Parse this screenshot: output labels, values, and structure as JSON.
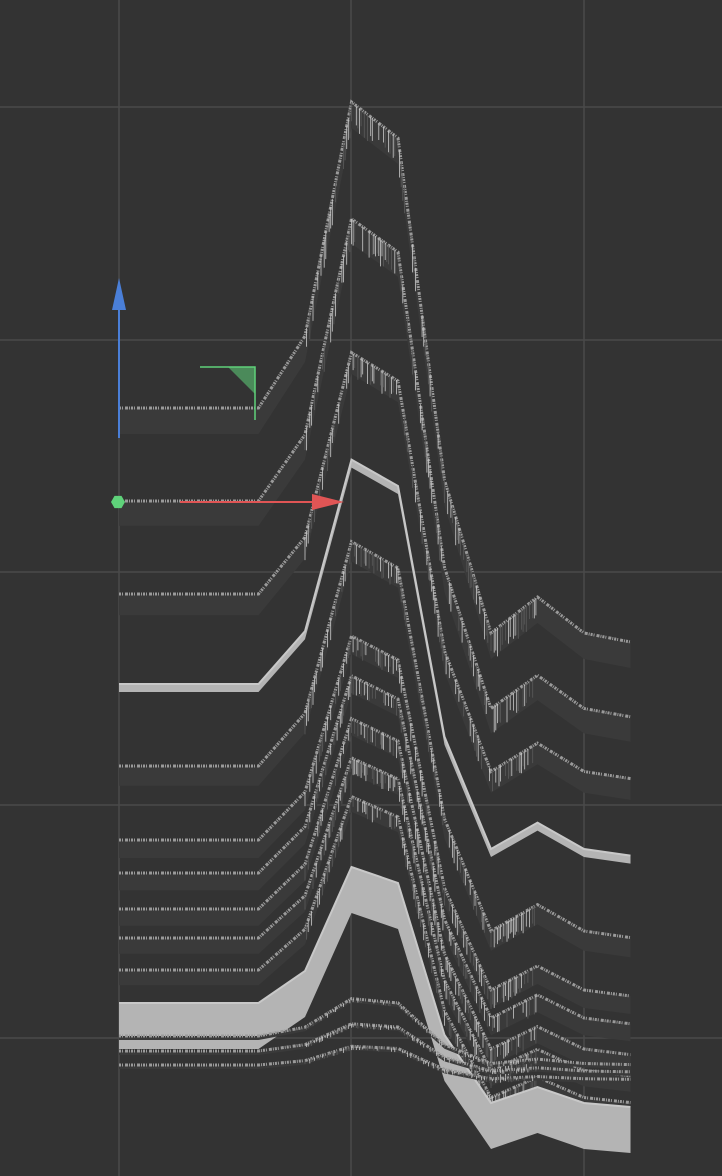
{
  "viewport": {
    "background": "#333333",
    "grid": {
      "visible": true,
      "color": "#4a4a4a"
    }
  },
  "profile": {
    "x": [
      0,
      3,
      4,
      5,
      6,
      7,
      8,
      9,
      10,
      11
    ],
    "shape": [
      0,
      0,
      0.08,
      0.34,
      0.3,
      -0.08,
      -0.25,
      -0.21,
      -0.25,
      -0.26
    ]
  },
  "layers": [
    {
      "index": 0,
      "amplitude": 900,
      "baseline": 408,
      "thickness": 3,
      "style": "noisy"
    },
    {
      "index": 1,
      "amplitude": 830,
      "baseline": 501,
      "thickness": 3,
      "style": "noisy"
    },
    {
      "index": 2,
      "amplitude": 710,
      "baseline": 594,
      "thickness": 3,
      "style": "noisy"
    },
    {
      "index": 3,
      "amplitude": 660,
      "baseline": 684,
      "thickness": 8,
      "style": "solid"
    },
    {
      "index": 4,
      "amplitude": 660,
      "baseline": 766,
      "thickness": 3,
      "style": "noisy"
    },
    {
      "index": 5,
      "amplitude": 600,
      "baseline": 840,
      "thickness": 3,
      "style": "noisy"
    },
    {
      "index": 6,
      "amplitude": 580,
      "baseline": 873,
      "thickness": 3,
      "style": "noisy"
    },
    {
      "index": 7,
      "amplitude": 560,
      "baseline": 909,
      "thickness": 3,
      "style": "noisy"
    },
    {
      "index": 8,
      "amplitude": 530,
      "baseline": 938,
      "thickness": 3,
      "style": "noisy"
    },
    {
      "index": 9,
      "amplitude": 510,
      "baseline": 970,
      "thickness": 3,
      "style": "noisy"
    },
    {
      "index": 10,
      "amplitude": 400,
      "baseline": 1003,
      "thickness": 46,
      "style": "solid"
    },
    {
      "index": 11,
      "amplitude": 110,
      "baseline": 1036,
      "thickness": 3,
      "style": "noisy"
    },
    {
      "index": 12,
      "amplitude": 80,
      "baseline": 1051,
      "thickness": 3,
      "style": "noisy"
    },
    {
      "index": 13,
      "amplitude": 55,
      "baseline": 1065,
      "thickness": 3,
      "style": "noisy"
    }
  ],
  "gizmo": {
    "x_axis_color": "#e05555",
    "z_axis_color": "#4a7fd8",
    "plane_handle_color": "#5fd27a",
    "origin_color": "#5fd27a",
    "x_axis_icon": "arrow-right-icon",
    "z_axis_icon": "arrow-up-icon",
    "plane_icon": "plane-handle-icon",
    "origin_icon": "hexagon-icon"
  },
  "colors": {
    "layer_light": "#c8c8c8",
    "layer_mid": "#9a9a9a",
    "layer_dark": "#5a5a5a",
    "solid_fill": "#b4b4b4"
  }
}
